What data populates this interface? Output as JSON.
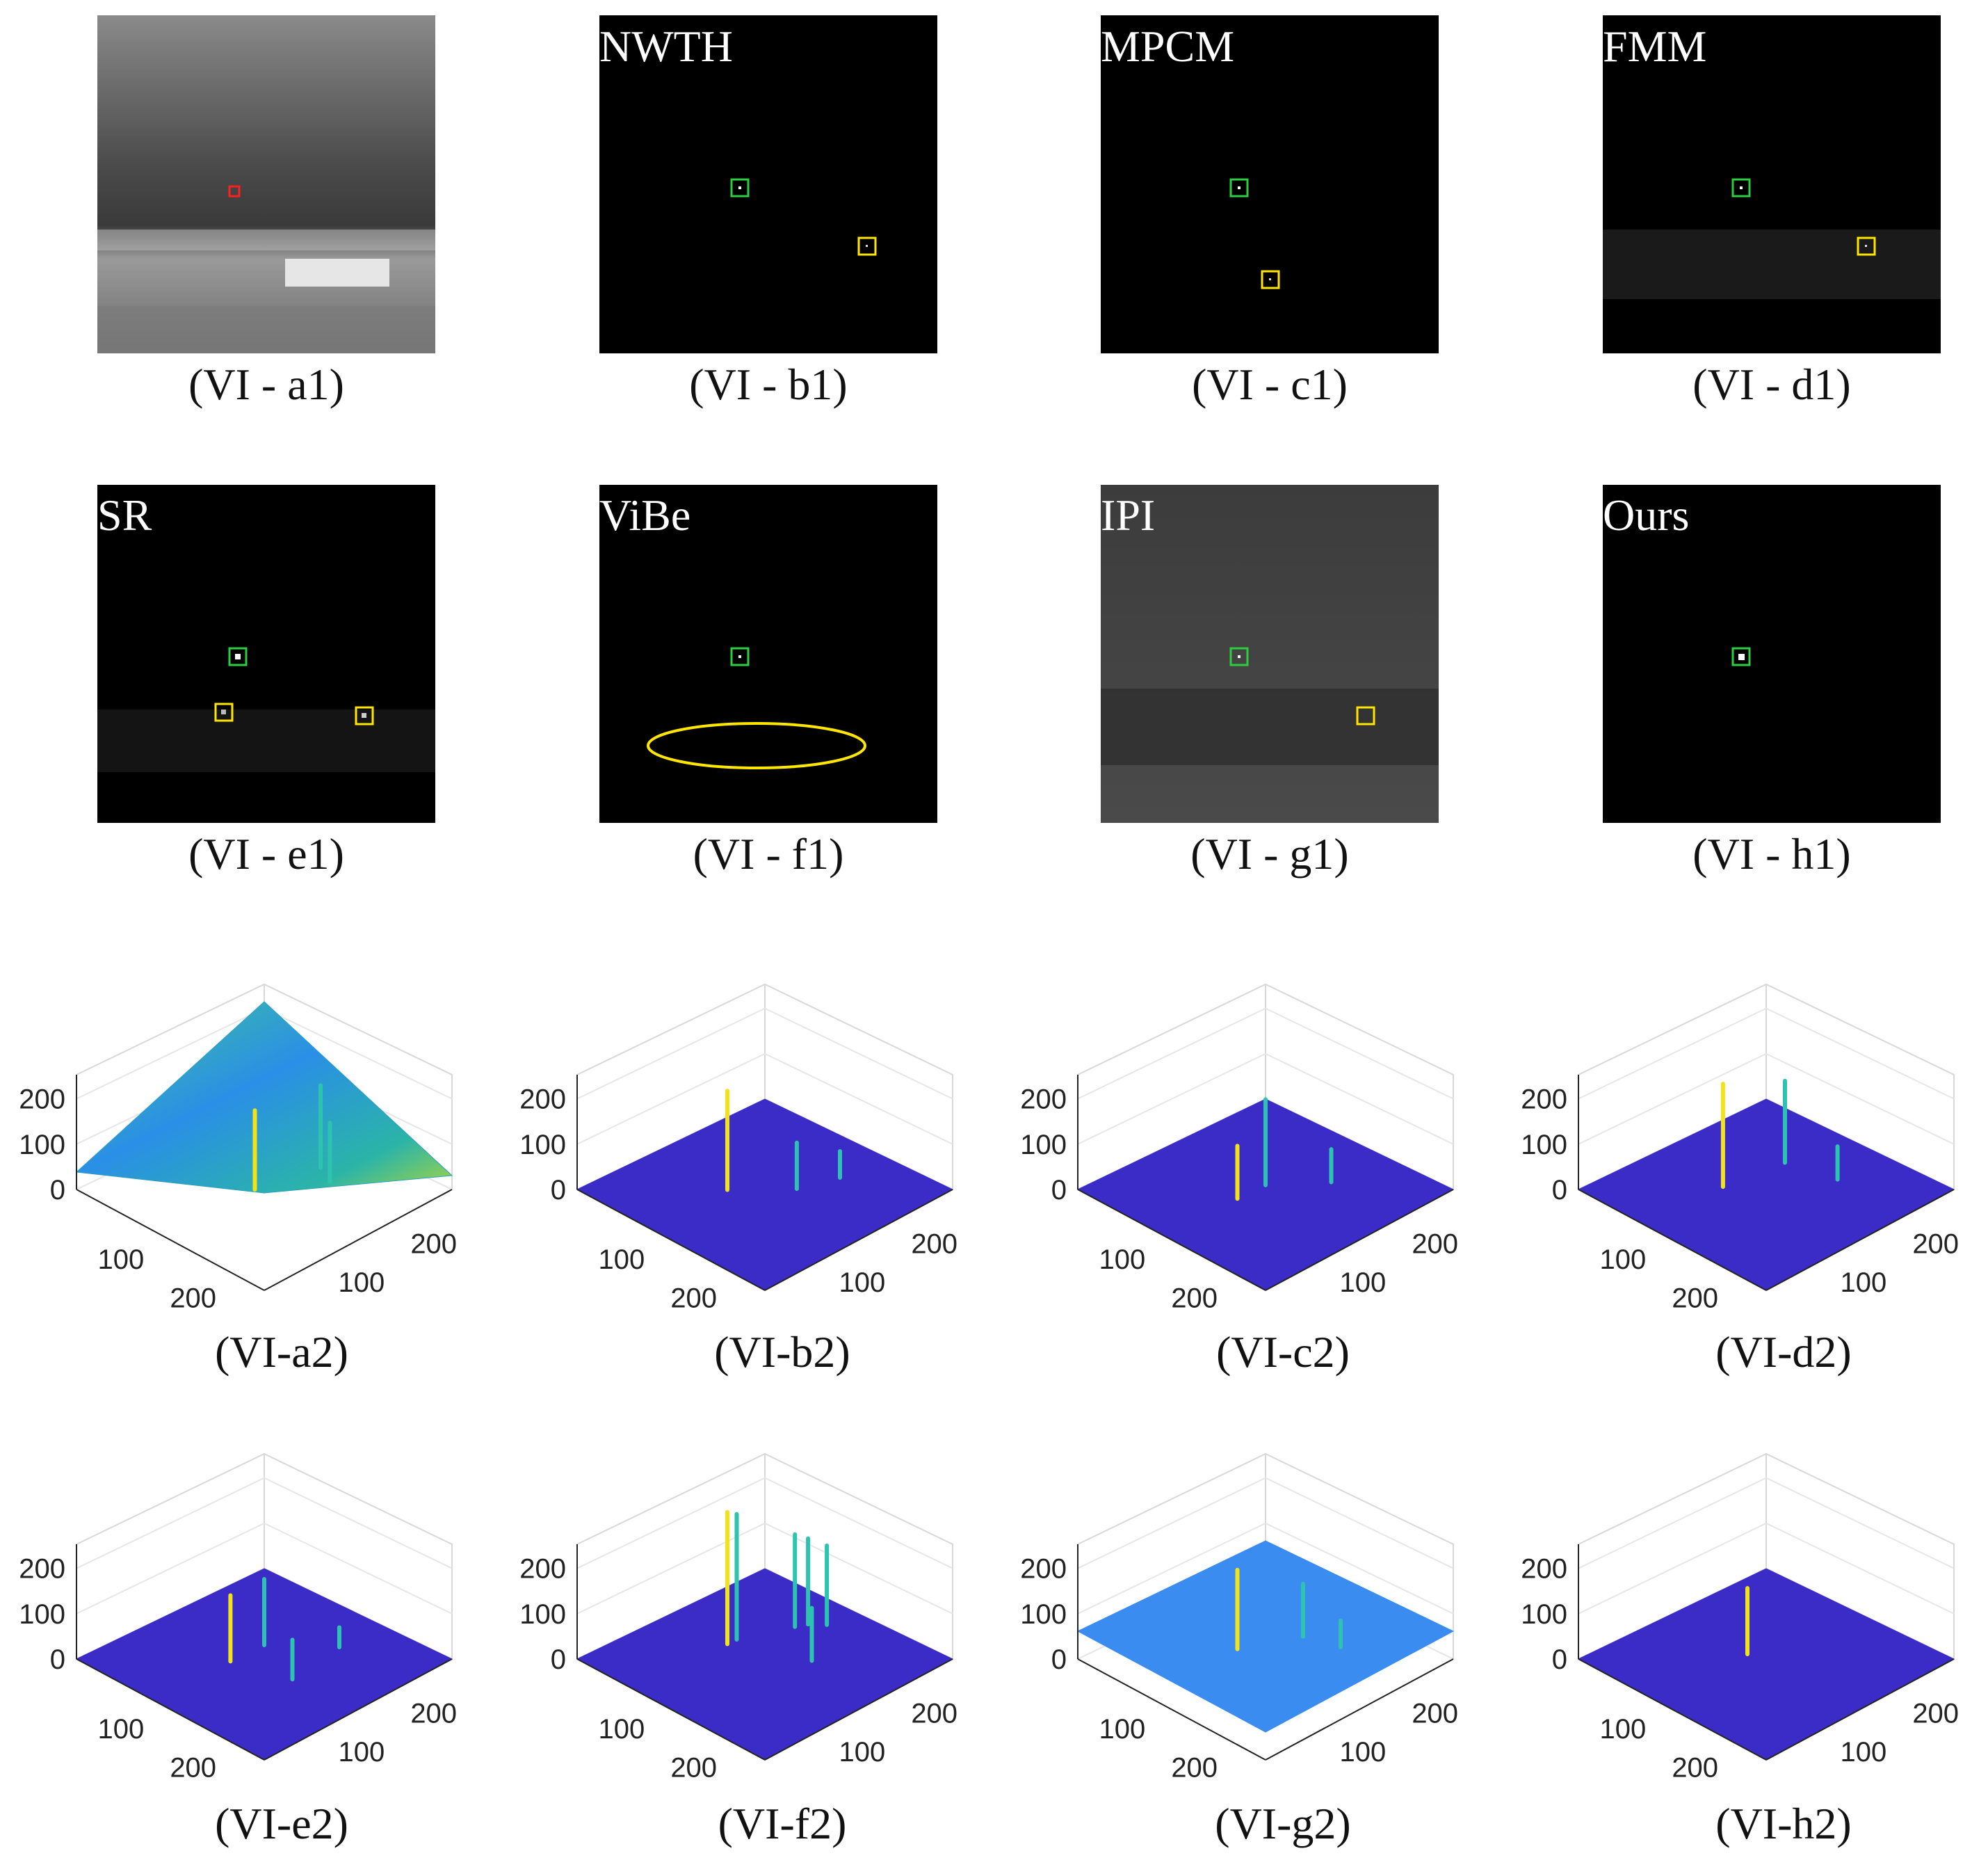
{
  "figure_label": "Panel VI: infrared small target detection comparison (images and 3D intensity surfaces)",
  "colors": {
    "target_box": "#2ecc40",
    "false_alarm_box": "#ffe600",
    "original_box": "#ff2020",
    "surface_low": "#3b2cc8",
    "surface_high": "#f2e21a"
  },
  "row1": [
    {
      "caption": "(VI - a1)",
      "method": ""
    },
    {
      "caption": "(VI - b1)",
      "method": "NWTH"
    },
    {
      "caption": "(VI - c1)",
      "method": "MPCM"
    },
    {
      "caption": "(VI - d1)",
      "method": "FMM"
    }
  ],
  "row2": [
    {
      "caption": "(VI - e1)",
      "method": "SR"
    },
    {
      "caption": "(VI - f1)",
      "method": "ViBe"
    },
    {
      "caption": "(VI - g1)",
      "method": "IPI"
    },
    {
      "caption": "(VI - h1)",
      "method": "Ours"
    }
  ],
  "row3": [
    {
      "caption": "(VI-a2)"
    },
    {
      "caption": "(VI-b2)"
    },
    {
      "caption": "(VI-c2)"
    },
    {
      "caption": "(VI-d2)"
    }
  ],
  "row4": [
    {
      "caption": "(VI-e2)"
    },
    {
      "caption": "(VI-f2)"
    },
    {
      "caption": "(VI-g2)"
    },
    {
      "caption": "(VI-h2)"
    }
  ],
  "chart_data": [
    {
      "type": "surface",
      "panel": "(VI-a2)",
      "zticks": [
        "200",
        "100",
        "0"
      ],
      "xticks": [
        "100",
        "200"
      ],
      "yticks": [
        "100",
        "200"
      ],
      "zlim": [
        0,
        255
      ]
    },
    {
      "type": "surface",
      "panel": "(VI-b2)",
      "zticks": [
        "200",
        "100",
        "0"
      ],
      "xticks": [
        "100",
        "200"
      ],
      "yticks": [
        "100",
        "200"
      ],
      "zlim": [
        0,
        255
      ]
    },
    {
      "type": "surface",
      "panel": "(VI-c2)",
      "zticks": [
        "200",
        "100",
        "0"
      ],
      "xticks": [
        "100",
        "200"
      ],
      "yticks": [
        "100",
        "200"
      ],
      "zlim": [
        0,
        255
      ]
    },
    {
      "type": "surface",
      "panel": "(VI-d2)",
      "zticks": [
        "200",
        "100",
        "0"
      ],
      "xticks": [
        "100",
        "200"
      ],
      "yticks": [
        "100",
        "200"
      ],
      "zlim": [
        0,
        255
      ]
    },
    {
      "type": "surface",
      "panel": "(VI-e2)",
      "zticks": [
        "200",
        "100",
        "0"
      ],
      "xticks": [
        "100",
        "200"
      ],
      "yticks": [
        "100",
        "200"
      ],
      "zlim": [
        0,
        255
      ]
    },
    {
      "type": "surface",
      "panel": "(VI-f2)",
      "zticks": [
        "200",
        "100",
        "0"
      ],
      "xticks": [
        "100",
        "200"
      ],
      "yticks": [
        "100",
        "200"
      ],
      "zlim": [
        0,
        255
      ]
    },
    {
      "type": "surface",
      "panel": "(VI-g2)",
      "zticks": [
        "200",
        "100",
        "0"
      ],
      "xticks": [
        "100",
        "200"
      ],
      "yticks": [
        "100",
        "200"
      ],
      "zlim": [
        0,
        255
      ]
    },
    {
      "type": "surface",
      "panel": "(VI-h2)",
      "zticks": [
        "200",
        "100",
        "0"
      ],
      "xticks": [
        "100",
        "200"
      ],
      "yticks": [
        "100",
        "200"
      ],
      "zlim": [
        0,
        255
      ]
    }
  ]
}
